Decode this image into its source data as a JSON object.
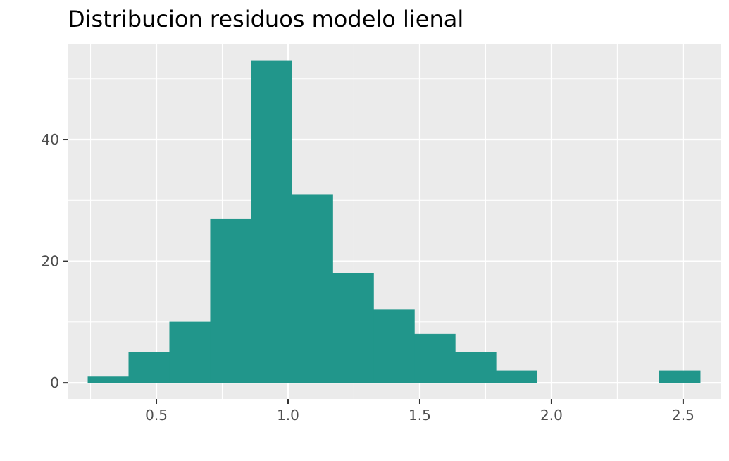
{
  "chart_data": {
    "type": "bar",
    "title": "Distribucion residuos modelo lienal",
    "xlabel": "",
    "ylabel": "",
    "bins": [
      {
        "x0": 0.24,
        "x1": 0.395,
        "count": 1
      },
      {
        "x0": 0.395,
        "x1": 0.55,
        "count": 5
      },
      {
        "x0": 0.55,
        "x1": 0.705,
        "count": 10
      },
      {
        "x0": 0.705,
        "x1": 0.86,
        "count": 27
      },
      {
        "x0": 0.86,
        "x1": 1.015,
        "count": 53
      },
      {
        "x0": 1.015,
        "x1": 1.17,
        "count": 31
      },
      {
        "x0": 1.17,
        "x1": 1.325,
        "count": 18
      },
      {
        "x0": 1.325,
        "x1": 1.48,
        "count": 12
      },
      {
        "x0": 1.48,
        "x1": 1.635,
        "count": 8
      },
      {
        "x0": 1.635,
        "x1": 1.79,
        "count": 5
      },
      {
        "x0": 1.79,
        "x1": 1.945,
        "count": 2
      },
      {
        "x0": 1.945,
        "x1": 2.1,
        "count": 0
      },
      {
        "x0": 2.1,
        "x1": 2.255,
        "count": 0
      },
      {
        "x0": 2.255,
        "x1": 2.41,
        "count": 0
      },
      {
        "x0": 2.41,
        "x1": 2.565,
        "count": 2
      }
    ],
    "xlim": [
      0.163,
      2.642
    ],
    "ylim": [
      -2.65,
      55.65
    ],
    "x_ticks": [
      0.5,
      1.0,
      1.5,
      2.0,
      2.5
    ],
    "x_tick_labels": [
      "0.5",
      "1.0",
      "1.5",
      "2.0",
      "2.5"
    ],
    "y_ticks": [
      0,
      20,
      40
    ],
    "y_tick_labels": [
      "0",
      "20",
      "40"
    ],
    "grid": true,
    "legend": "none",
    "colors": {
      "fill": "#21968B",
      "panel_background": "#EBEBEB",
      "grid_line": "#FFFFFF",
      "tick_label": "#4D4D4D",
      "tick_mark": "#333333"
    }
  }
}
